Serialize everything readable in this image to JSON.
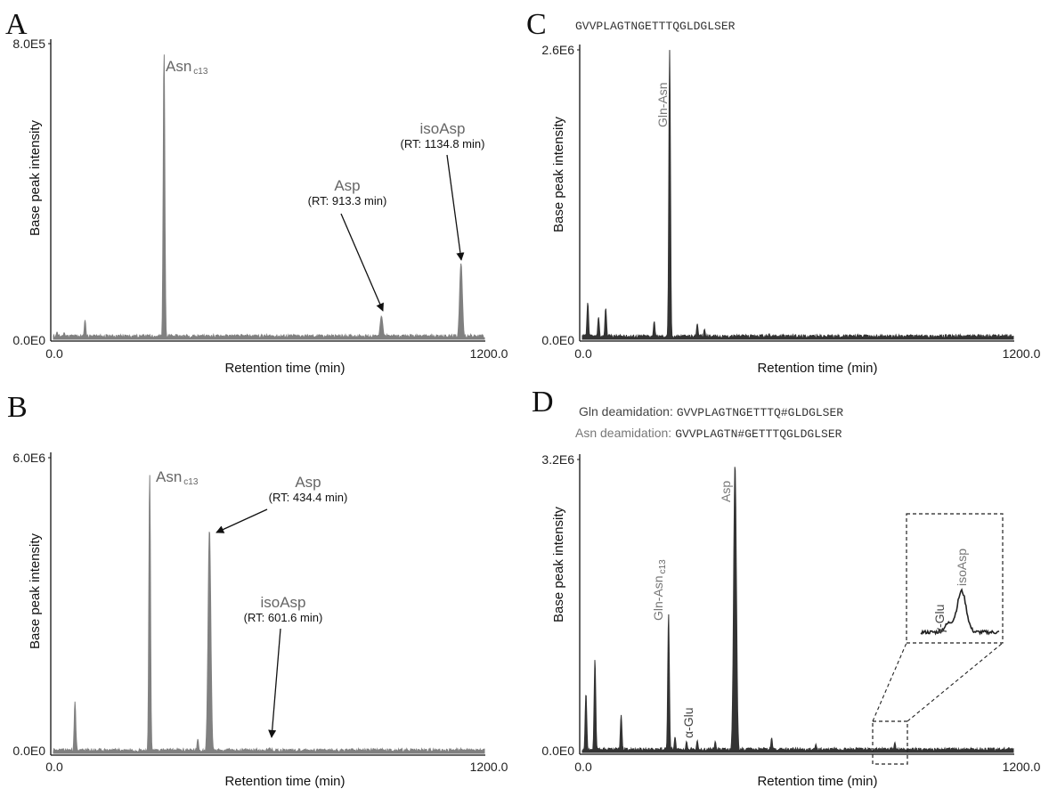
{
  "panels": {
    "A": {
      "letter": "A"
    },
    "B": {
      "letter": "B"
    },
    "C": {
      "letter": "C",
      "sequence": "GVVPLAGTNGETTTQGLDGLSER"
    },
    "D": {
      "letter": "D",
      "legend_gln_label": "Gln deamidation:",
      "legend_gln_seq": "GVVPLAGTNGETTTQ#GLDGLSER",
      "legend_asn_label": "Asn deamidation:",
      "legend_asn_seq": "GVVPLAGTN#GETTTQGLDGLSER"
    }
  },
  "chart_data": [
    {
      "panel": "A",
      "type": "line",
      "xlabel": "Retention time (min)",
      "ylabel": "Base peak intensity",
      "xlim": [
        0,
        1200
      ],
      "ylim": [
        0,
        800000
      ],
      "x_tick_labels": [
        "0.0",
        "1200.0"
      ],
      "y_tick_labels": [
        "0.0E0",
        "8.0E5"
      ],
      "color": "#808080",
      "peaks": [
        {
          "x": 308,
          "y": 780000,
          "label": "Asn",
          "sub": "c13"
        },
        {
          "x": 913.3,
          "y": 62000,
          "label": "Asp",
          "rt": "(RT: 913.3 min)"
        },
        {
          "x": 1134.8,
          "y": 205000,
          "label": "isoAsp",
          "rt": "(RT: 1134.8 min)"
        },
        {
          "x": 88,
          "y": 52000
        },
        {
          "x": 10,
          "y": 20000
        },
        {
          "x": 30,
          "y": 18000
        }
      ]
    },
    {
      "panel": "B",
      "type": "line",
      "xlabel": "Retention time (min)",
      "ylabel": "Base peak intensity",
      "xlim": [
        0,
        1200
      ],
      "ylim": [
        0,
        6000000
      ],
      "x_tick_labels": [
        "0.0",
        "1200.0"
      ],
      "y_tick_labels": [
        "0.0E0",
        "6.0E6"
      ],
      "color": "#808080",
      "peaks": [
        {
          "x": 268,
          "y": 5700000,
          "label": "Asn",
          "sub": "c13"
        },
        {
          "x": 434.4,
          "y": 4550000,
          "label": "Asp",
          "rt": "(RT: 434.4 min)"
        },
        {
          "x": 601.6,
          "y": 110000,
          "label": "isoAsp",
          "rt": "(RT: 601.6 min)"
        },
        {
          "x": 60,
          "y": 1050000
        },
        {
          "x": 62,
          "y": 420000
        },
        {
          "x": 402,
          "y": 290000
        },
        {
          "x": 350,
          "y": 80000
        }
      ]
    },
    {
      "panel": "C",
      "type": "line",
      "xlabel": "Retention time (min)",
      "ylabel": "Base peak intensity",
      "xlim": [
        0,
        1200
      ],
      "ylim": [
        0,
        2600000
      ],
      "x_tick_labels": [
        "0.0",
        "1200.0"
      ],
      "y_tick_labels": [
        "0.0E0",
        "2.6E6"
      ],
      "color": "#333333",
      "peaks": [
        {
          "x": 243,
          "y": 2600000,
          "label": "Gln-Asn"
        },
        {
          "x": 15,
          "y": 330000
        },
        {
          "x": 45,
          "y": 200000
        },
        {
          "x": 65,
          "y": 280000
        },
        {
          "x": 200,
          "y": 160000
        },
        {
          "x": 320,
          "y": 140000
        },
        {
          "x": 340,
          "y": 90000
        },
        {
          "x": 520,
          "y": 50000
        }
      ]
    },
    {
      "panel": "D",
      "type": "line",
      "xlabel": "Retention time (min)",
      "ylabel": "Base peak intensity",
      "xlim": [
        0,
        1200
      ],
      "ylim": [
        0,
        3200000
      ],
      "x_tick_labels": [
        "0.0",
        "1200.0"
      ],
      "y_tick_labels": [
        "0.0E0",
        "3.2E6"
      ],
      "color": "#333333",
      "peaks": [
        {
          "x": 240,
          "y": 1520000,
          "label": "Gln-Asn",
          "sub": "c13"
        },
        {
          "x": 425,
          "y": 3150000,
          "label": "Asp"
        },
        {
          "x": 258,
          "y": 170000,
          "label": "α-Glu"
        },
        {
          "x": 10,
          "y": 650000
        },
        {
          "x": 35,
          "y": 1020000
        },
        {
          "x": 108,
          "y": 410000
        },
        {
          "x": 290,
          "y": 120000
        },
        {
          "x": 320,
          "y": 130000
        },
        {
          "x": 370,
          "y": 120000
        },
        {
          "x": 527,
          "y": 160000
        },
        {
          "x": 650,
          "y": 90000
        },
        {
          "x": 870,
          "y": 110000
        }
      ],
      "inset": {
        "labels": [
          "γ-Glu",
          "isoAsp"
        ]
      }
    }
  ]
}
